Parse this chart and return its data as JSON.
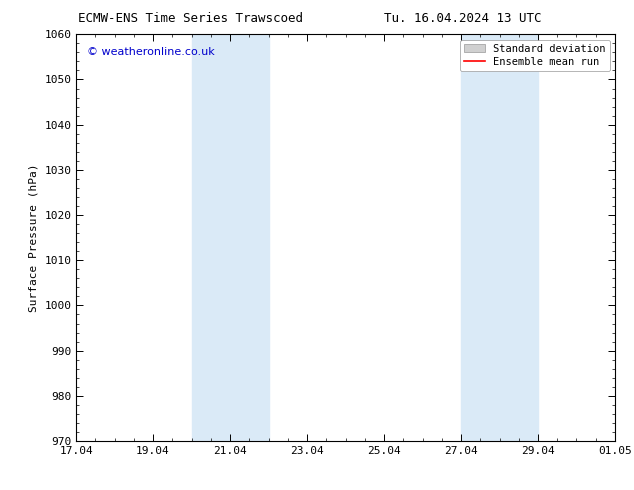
{
  "title_left": "ECMW-ENS Time Series Trawscoed",
  "title_right": "Tu. 16.04.2024 13 UTC",
  "ylabel": "Surface Pressure (hPa)",
  "ylim": [
    970,
    1060
  ],
  "yticks": [
    970,
    980,
    990,
    1000,
    1010,
    1020,
    1030,
    1040,
    1050,
    1060
  ],
  "xlabel": "",
  "xtick_labels": [
    "17.04",
    "19.04",
    "21.04",
    "23.04",
    "25.04",
    "27.04",
    "29.04",
    "01.05"
  ],
  "xtick_positions": [
    0,
    2,
    4,
    6,
    8,
    10,
    12,
    14
  ],
  "x_total_days": 14,
  "shaded_regions": [
    {
      "x_start": 3.0,
      "x_end": 5.0
    },
    {
      "x_start": 10.0,
      "x_end": 12.0
    }
  ],
  "shade_color": "#daeaf7",
  "watermark_text": "© weatheronline.co.uk",
  "watermark_color": "#0000cc",
  "legend_std_label": "Standard deviation",
  "legend_mean_label": "Ensemble mean run",
  "legend_std_color": "#d0d0d0",
  "legend_mean_color": "#ff0000",
  "bg_color": "#ffffff",
  "tick_color": "#000000",
  "title_fontsize": 9,
  "axis_label_fontsize": 8,
  "tick_fontsize": 8,
  "legend_fontsize": 7.5,
  "watermark_fontsize": 8
}
